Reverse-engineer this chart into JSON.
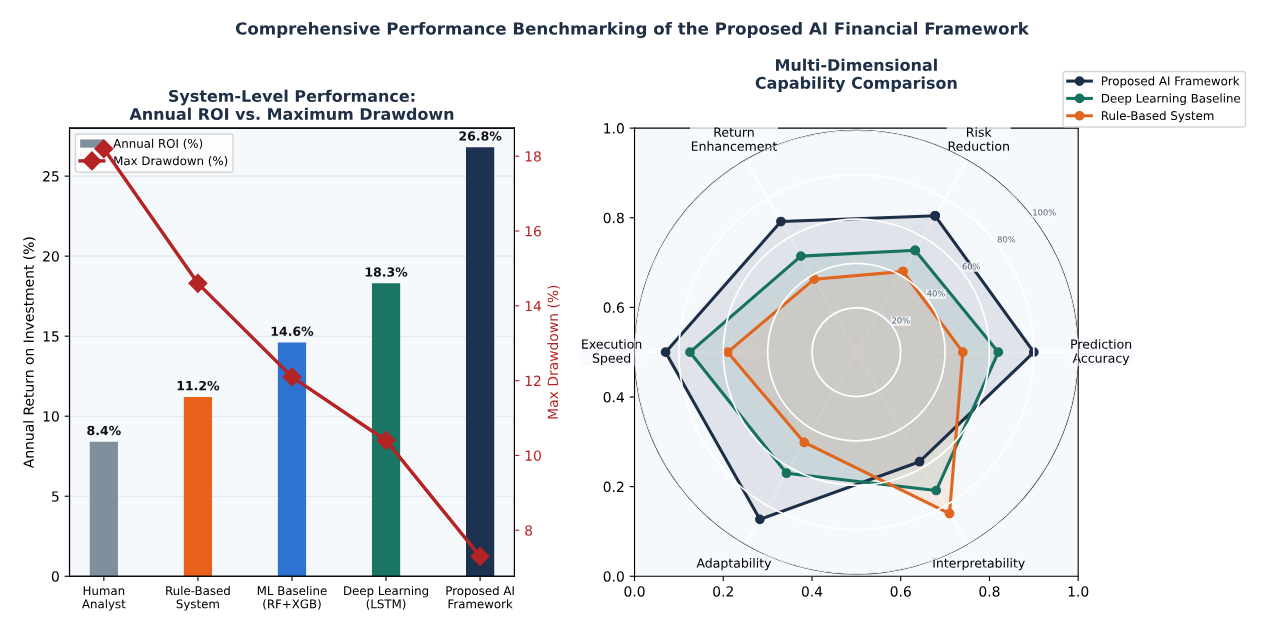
{
  "chart_data": [
    {
      "type": "bar",
      "title": "System-Level Performance:\nAnnual ROI vs. Maximum Drawdown",
      "ylabel": "Annual Return on Investment (%)",
      "y2label": "Max Drawdown (%)",
      "categories": [
        "Human\nAnalyst",
        "Rule-Based\nSystem",
        "ML Baseline\n(RF+XGB)",
        "Deep Learning\n(LSTM)",
        "Proposed AI\nFramework"
      ],
      "series": [
        {
          "name": "Annual ROI (%)",
          "type": "bar",
          "colors": [
            "#7f8f9c",
            "#e8621c",
            "#2e72d2",
            "#1b7565",
            "#1d3250"
          ],
          "values": [
            8.4,
            11.2,
            14.6,
            18.3,
            26.8
          ],
          "value_labels": [
            "8.4%",
            "11.2%",
            "14.6%",
            "18.3%",
            "26.8%"
          ]
        },
        {
          "name": "Max Drawdown (%)",
          "type": "line",
          "axis": "y2",
          "color": "#b52424",
          "values": [
            18.2,
            14.6,
            12.1,
            10.4,
            7.3
          ]
        }
      ],
      "ylim": [
        0,
        28.0
      ],
      "yticks": [
        0,
        5,
        10,
        15,
        20,
        25
      ],
      "y2lim": [
        6.77,
        18.75
      ],
      "y2ticks": [
        8,
        10,
        12,
        14,
        16,
        18
      ],
      "grid": "y",
      "legend": "top left",
      "marker": "diamond",
      "line_style": "solid",
      "annotations": [
        "Comprehensive Performance Benchmarking of the Proposed AI Financial Framework"
      ]
    },
    {
      "type": "scatter",
      "xlim": [
        0,
        1
      ],
      "ylim": [
        0,
        1
      ],
      "xticks": [
        {
          "value": 0,
          "label": "0.0"
        },
        {
          "value": 0.2,
          "label": "0.2"
        },
        {
          "value": 0.4,
          "label": "0.4"
        },
        {
          "value": 0.6,
          "label": "0.6"
        },
        {
          "value": 0.8,
          "label": "0.8"
        },
        {
          "value": 1,
          "label": "1.0"
        }
      ],
      "yticks": [
        {
          "value": 0,
          "label": "0.0"
        },
        {
          "value": 0.2,
          "label": "0.2"
        },
        {
          "value": 0.4,
          "label": "0.4"
        },
        {
          "value": 0.6,
          "label": "0.6"
        },
        {
          "value": 0.8,
          "label": "0.8"
        },
        {
          "value": 1,
          "label": "1.0"
        }
      ]
    },
    {
      "type": "radar",
      "title": "Multi-Dimensional\nCapability Comparison",
      "categories": [
        "Risk\nReduction",
        "Prediction\nAccuracy",
        "Interpretability",
        "Adaptability",
        "Execution\nSpeed",
        "Return\nEnhancement"
      ],
      "series": [
        {
          "name": "Proposed AI Framework",
          "color": "#1d2f48",
          "values": [
            0.71,
            0.8,
            0.57,
            0.87,
            0.86,
            0.68
          ]
        },
        {
          "name": "Deep Learning Baseline",
          "color": "#17715f",
          "values": [
            0.53,
            0.64,
            0.72,
            0.63,
            0.75,
            0.5
          ]
        },
        {
          "name": "Rule-Based System",
          "color": "#e0651e",
          "values": [
            0.42,
            0.48,
            0.84,
            0.47,
            0.58,
            0.38
          ]
        }
      ],
      "ylim": [
        0,
        1
      ],
      "yticks": [
        {
          "value": 0.2,
          "label": "20%"
        },
        {
          "value": 0.4,
          "label": "40%"
        },
        {
          "value": 0.6,
          "label": "60%"
        },
        {
          "value": 0.8,
          "label": "80%"
        },
        {
          "value": 1.0,
          "label": "100%"
        }
      ],
      "grid": true,
      "legend": "top right",
      "marker": "circle",
      "line_style": "solid"
    }
  ]
}
